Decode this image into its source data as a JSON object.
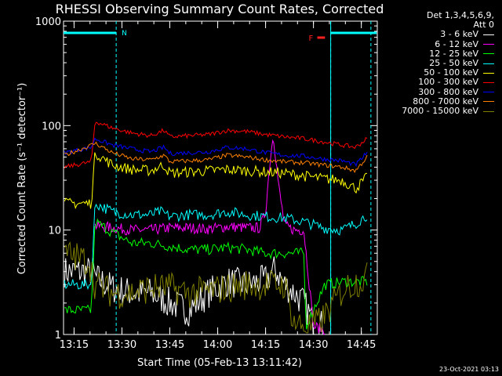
{
  "chart_data": {
    "type": "line",
    "title": "RHESSI Observing Summary Count Rates, Corrected",
    "xlabel": "Start Time (05-Feb-13 13:11:42)",
    "ylabel": "Corrected Count Rate (s⁻¹ detector⁻¹)",
    "y_scale": "log",
    "ylim": [
      1,
      1000
    ],
    "y_ticks": [
      1,
      10,
      100,
      1000
    ],
    "y_tick_labels": [
      "1",
      "10",
      "100",
      "1000"
    ],
    "xlim": [
      13.195,
      14.8333
    ],
    "x_tick_labels": [
      "13:15",
      "13:30",
      "13:45",
      "14:00",
      "14:15",
      "14:30",
      "14:45"
    ],
    "x_ticks": [
      13.25,
      13.5,
      13.75,
      14.0,
      14.25,
      14.5,
      14.75
    ],
    "legend_header": [
      "Det 1,3,4,5,6,9,",
      "Att 0"
    ],
    "legend_position": "right",
    "flag_label": "N",
    "flare_label": "F",
    "series": [
      {
        "name": "3 - 6 keV",
        "color": "#ffffff",
        "x": [
          13.2,
          13.35,
          13.36,
          13.45,
          13.55,
          13.65,
          13.75,
          13.85,
          13.95,
          14.05,
          14.15,
          14.25,
          14.3,
          14.35,
          14.4,
          14.45,
          14.5,
          14.56
        ],
        "y": [
          4.0,
          4.0,
          3.5,
          2.8,
          2.5,
          2.5,
          2.0,
          1.7,
          2.5,
          3.2,
          3.0,
          3.3,
          4.2,
          3.0,
          2.5,
          2.0,
          1.3,
          1.2
        ]
      },
      {
        "name": "6 - 12 keV",
        "color": "#ff00ff",
        "x": [
          13.36,
          13.45,
          13.55,
          13.65,
          13.75,
          13.85,
          13.95,
          14.05,
          14.15,
          14.22,
          14.25,
          14.27,
          14.29,
          14.32,
          14.35,
          14.4,
          14.45,
          14.5,
          14.56
        ],
        "y": [
          11.0,
          10.5,
          10.0,
          10.0,
          10.5,
          10.5,
          10.2,
          10.8,
          10.5,
          10.5,
          15,
          40,
          85,
          25,
          11,
          10,
          10,
          1.2,
          1.1
        ]
      },
      {
        "name": "12 - 25 keV",
        "color": "#00ff00",
        "x": [
          13.2,
          13.34,
          13.36,
          13.45,
          13.55,
          13.65,
          13.75,
          13.85,
          13.95,
          14.05,
          14.15,
          14.25,
          14.35,
          14.45,
          14.46,
          14.56,
          14.66,
          14.78
        ],
        "y": [
          1.7,
          1.7,
          12,
          9.5,
          7.5,
          7.5,
          7.0,
          6.5,
          6.5,
          6.8,
          6.5,
          6.0,
          6.0,
          6.0,
          1.2,
          3.0,
          3.2,
          3.2
        ]
      },
      {
        "name": "25 - 50 keV",
        "color": "#00ffff",
        "x": [
          13.2,
          13.34,
          13.36,
          13.45,
          13.55,
          13.65,
          13.7,
          13.75,
          13.85,
          13.95,
          14.05,
          14.15,
          14.25,
          14.35,
          14.4,
          14.45,
          14.55,
          14.65,
          14.72,
          14.78
        ],
        "y": [
          3.0,
          3.0,
          18,
          15,
          14,
          14,
          15,
          13.5,
          14,
          14,
          15,
          14,
          13.5,
          13.0,
          12.5,
          12.0,
          10.5,
          10.0,
          11.5,
          14
        ]
      },
      {
        "name": "50 - 100 keV",
        "color": "#ffff00",
        "x": [
          13.2,
          13.34,
          13.36,
          13.45,
          13.55,
          13.65,
          13.72,
          13.75,
          13.85,
          13.95,
          14.05,
          14.15,
          14.25,
          14.35,
          14.45,
          14.55,
          14.65,
          14.72,
          14.78
        ],
        "y": [
          18,
          18,
          55,
          42,
          38,
          37,
          42,
          35,
          36,
          37,
          38,
          37,
          36,
          35,
          33,
          31,
          30,
          25,
          32
        ]
      },
      {
        "name": "100 - 300 keV",
        "color": "#ff0000",
        "x": [
          13.2,
          13.34,
          13.36,
          13.45,
          13.55,
          13.65,
          13.72,
          13.75,
          13.85,
          13.95,
          14.05,
          14.15,
          14.25,
          14.35,
          14.45,
          14.55,
          14.65,
          14.72,
          14.78
        ],
        "y": [
          40,
          45,
          110,
          95,
          85,
          80,
          90,
          78,
          80,
          82,
          90,
          88,
          82,
          78,
          75,
          70,
          65,
          62,
          75
        ]
      },
      {
        "name": "300 - 800 keV",
        "color": "#0000ff",
        "x": [
          13.2,
          13.34,
          13.36,
          13.45,
          13.55,
          13.65,
          13.72,
          13.75,
          13.85,
          13.95,
          14.05,
          14.15,
          14.25,
          14.35,
          14.45,
          14.55,
          14.65,
          14.72,
          14.78
        ],
        "y": [
          55,
          62,
          75,
          65,
          60,
          56,
          62,
          54,
          55,
          56,
          62,
          60,
          55,
          52,
          51,
          48,
          46,
          42,
          55
        ]
      },
      {
        "name": "800 - 7000 keV",
        "color": "#ff8000",
        "x": [
          13.2,
          13.34,
          13.36,
          13.45,
          13.55,
          13.65,
          13.72,
          13.75,
          13.85,
          13.95,
          14.05,
          14.15,
          14.25,
          14.35,
          14.45,
          14.55,
          14.65,
          14.72,
          14.78
        ],
        "y": [
          52,
          65,
          68,
          55,
          48,
          47,
          52,
          45,
          46,
          47,
          52,
          50,
          47,
          45,
          44,
          42,
          40,
          37,
          50
        ]
      },
      {
        "name": "7000 - 15000 keV",
        "color": "#808000",
        "x": [
          13.2,
          13.33,
          13.36,
          13.45,
          13.55,
          13.65,
          13.75,
          13.85,
          13.95,
          14.05,
          14.15,
          14.25,
          14.35,
          14.4,
          14.45,
          14.5,
          14.56,
          14.66,
          14.78
        ],
        "y": [
          6.0,
          5.0,
          3.0,
          2.5,
          2.5,
          2.8,
          2.8,
          2.5,
          2.6,
          2.8,
          3.0,
          3.0,
          3.0,
          1.3,
          1.2,
          1.2,
          1.5,
          2.8,
          3.5
        ]
      }
    ],
    "annotations": {
      "flag_segments": [
        [
          13.195,
          13.47
        ],
        [
          14.59,
          14.83
        ]
      ],
      "markers": [
        13.47,
        14.59,
        14.8
      ],
      "flare_bar": [
        14.52,
        14.56
      ]
    }
  },
  "timestamp": "23-Oct-2021 03:13"
}
